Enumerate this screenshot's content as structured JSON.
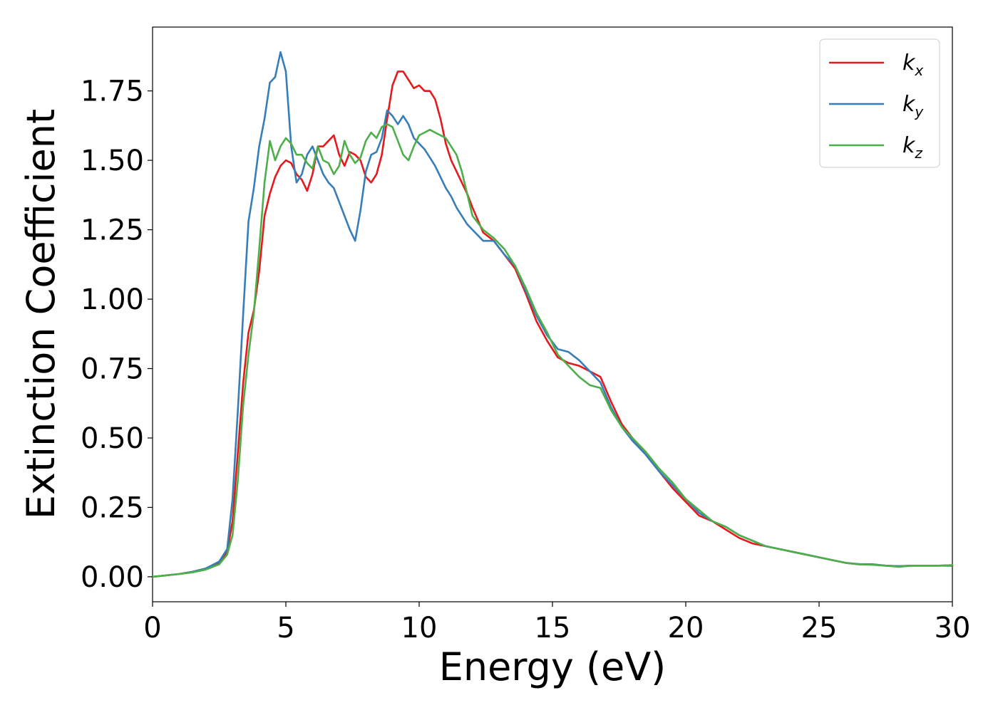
{
  "chart_data": {
    "type": "line",
    "title": "",
    "xlabel": "Energy (eV)",
    "ylabel": "Extinction Coefficient",
    "xlim": [
      0,
      30
    ],
    "ylim": [
      -0.09,
      1.98
    ],
    "xticks": [
      0,
      5,
      10,
      15,
      20,
      25,
      30
    ],
    "xtick_labels": [
      "0",
      "5",
      "10",
      "15",
      "20",
      "25",
      "30"
    ],
    "yticks": [
      0,
      0.25,
      0.5,
      0.75,
      1.0,
      1.25,
      1.5,
      1.75
    ],
    "ytick_labels": [
      "0.00",
      "0.25",
      "0.50",
      "0.75",
      "1.00",
      "1.25",
      "1.50",
      "1.75"
    ],
    "grid": false,
    "legend_position": "top-right",
    "series": [
      {
        "name": "k_x",
        "label_base": "k",
        "label_sub": "x",
        "color": "#e41a1c",
        "x": [
          0,
          0.5,
          1,
          1.5,
          2,
          2.5,
          2.8,
          3,
          3.2,
          3.4,
          3.6,
          3.8,
          4,
          4.2,
          4.4,
          4.6,
          4.8,
          5,
          5.2,
          5.4,
          5.6,
          5.8,
          6,
          6.2,
          6.4,
          6.6,
          6.8,
          7,
          7.2,
          7.4,
          7.6,
          7.8,
          8,
          8.2,
          8.4,
          8.6,
          8.8,
          9,
          9.2,
          9.4,
          9.6,
          9.8,
          10,
          10.2,
          10.4,
          10.6,
          10.8,
          11,
          11.2,
          11.4,
          11.6,
          11.8,
          12,
          12.4,
          12.8,
          13.2,
          13.6,
          14,
          14.4,
          14.8,
          15.2,
          15.6,
          16,
          16.4,
          16.8,
          17.2,
          17.6,
          18,
          18.5,
          19,
          19.5,
          20,
          20.5,
          21,
          21.5,
          22,
          22.5,
          23,
          23.5,
          24,
          24.5,
          25,
          25.5,
          26,
          26.5,
          27,
          27.5,
          28,
          28.5,
          29,
          29.5,
          30
        ],
        "y": [
          0,
          0.005,
          0.01,
          0.018,
          0.03,
          0.05,
          0.09,
          0.2,
          0.45,
          0.7,
          0.88,
          0.96,
          1.1,
          1.3,
          1.38,
          1.44,
          1.48,
          1.5,
          1.49,
          1.45,
          1.43,
          1.39,
          1.45,
          1.55,
          1.55,
          1.57,
          1.59,
          1.52,
          1.48,
          1.53,
          1.52,
          1.5,
          1.44,
          1.42,
          1.45,
          1.52,
          1.65,
          1.77,
          1.82,
          1.82,
          1.79,
          1.76,
          1.77,
          1.75,
          1.75,
          1.72,
          1.65,
          1.56,
          1.5,
          1.46,
          1.42,
          1.38,
          1.33,
          1.24,
          1.21,
          1.16,
          1.11,
          1.02,
          0.92,
          0.85,
          0.79,
          0.77,
          0.76,
          0.74,
          0.72,
          0.63,
          0.55,
          0.5,
          0.44,
          0.38,
          0.32,
          0.27,
          0.22,
          0.2,
          0.17,
          0.14,
          0.12,
          0.11,
          0.1,
          0.09,
          0.08,
          0.07,
          0.06,
          0.05,
          0.045,
          0.045,
          0.04,
          0.038,
          0.04,
          0.04,
          0.04,
          0.04
        ]
      },
      {
        "name": "k_y",
        "label_base": "k",
        "label_sub": "y",
        "color": "#377eb8",
        "x": [
          0,
          0.5,
          1,
          1.5,
          2,
          2.5,
          2.8,
          3,
          3.2,
          3.4,
          3.6,
          3.8,
          4,
          4.2,
          4.4,
          4.6,
          4.8,
          5,
          5.2,
          5.4,
          5.6,
          5.8,
          6,
          6.2,
          6.4,
          6.6,
          6.8,
          7,
          7.2,
          7.4,
          7.6,
          7.8,
          8,
          8.2,
          8.4,
          8.6,
          8.8,
          9,
          9.2,
          9.4,
          9.6,
          9.8,
          10,
          10.2,
          10.4,
          10.6,
          10.8,
          11,
          11.2,
          11.4,
          11.6,
          11.8,
          12,
          12.4,
          12.8,
          13.2,
          13.6,
          14,
          14.4,
          14.8,
          15.2,
          15.6,
          16,
          16.4,
          16.8,
          17.2,
          17.6,
          18,
          18.5,
          19,
          19.5,
          20,
          20.5,
          21,
          21.5,
          22,
          22.5,
          23,
          23.5,
          24,
          24.5,
          25,
          25.5,
          26,
          26.5,
          27,
          27.5,
          28,
          28.5,
          29,
          29.5,
          30
        ],
        "y": [
          0,
          0.005,
          0.01,
          0.018,
          0.03,
          0.055,
          0.1,
          0.28,
          0.6,
          0.95,
          1.28,
          1.4,
          1.55,
          1.65,
          1.78,
          1.8,
          1.89,
          1.82,
          1.55,
          1.42,
          1.45,
          1.52,
          1.55,
          1.5,
          1.45,
          1.42,
          1.4,
          1.35,
          1.3,
          1.25,
          1.21,
          1.32,
          1.46,
          1.52,
          1.53,
          1.58,
          1.68,
          1.66,
          1.63,
          1.66,
          1.63,
          1.58,
          1.56,
          1.54,
          1.51,
          1.48,
          1.44,
          1.4,
          1.37,
          1.33,
          1.3,
          1.27,
          1.25,
          1.21,
          1.21,
          1.16,
          1.12,
          1.03,
          0.94,
          0.87,
          0.82,
          0.81,
          0.78,
          0.74,
          0.7,
          0.61,
          0.54,
          0.49,
          0.44,
          0.38,
          0.33,
          0.28,
          0.23,
          0.2,
          0.18,
          0.15,
          0.13,
          0.11,
          0.1,
          0.09,
          0.08,
          0.07,
          0.06,
          0.05,
          0.046,
          0.045,
          0.04,
          0.038,
          0.04,
          0.04,
          0.04,
          0.042
        ]
      },
      {
        "name": "k_z",
        "label_base": "k",
        "label_sub": "z",
        "color": "#4daf4a",
        "x": [
          0,
          0.5,
          1,
          1.5,
          2,
          2.5,
          2.8,
          3,
          3.2,
          3.4,
          3.6,
          3.8,
          4,
          4.2,
          4.4,
          4.6,
          4.8,
          5,
          5.2,
          5.4,
          5.6,
          5.8,
          6,
          6.2,
          6.4,
          6.6,
          6.8,
          7,
          7.2,
          7.4,
          7.6,
          7.8,
          8,
          8.2,
          8.4,
          8.6,
          8.8,
          9,
          9.2,
          9.4,
          9.6,
          9.8,
          10,
          10.2,
          10.4,
          10.6,
          10.8,
          11,
          11.2,
          11.4,
          11.6,
          11.8,
          12,
          12.4,
          12.8,
          13.2,
          13.6,
          14,
          14.4,
          14.8,
          15.2,
          15.6,
          16,
          16.4,
          16.8,
          17.2,
          17.6,
          18,
          18.5,
          19,
          19.5,
          20,
          20.5,
          21,
          21.5,
          22,
          22.5,
          23,
          23.5,
          24,
          24.5,
          25,
          25.5,
          26,
          26.5,
          27,
          27.5,
          28,
          28.5,
          29,
          29.5,
          30
        ],
        "y": [
          0,
          0.005,
          0.01,
          0.016,
          0.026,
          0.045,
          0.08,
          0.15,
          0.35,
          0.62,
          0.8,
          0.95,
          1.18,
          1.42,
          1.57,
          1.5,
          1.55,
          1.58,
          1.56,
          1.52,
          1.52,
          1.49,
          1.47,
          1.55,
          1.5,
          1.49,
          1.45,
          1.48,
          1.57,
          1.52,
          1.49,
          1.51,
          1.57,
          1.6,
          1.58,
          1.62,
          1.63,
          1.62,
          1.57,
          1.52,
          1.5,
          1.55,
          1.59,
          1.6,
          1.61,
          1.6,
          1.59,
          1.58,
          1.55,
          1.52,
          1.46,
          1.38,
          1.3,
          1.25,
          1.22,
          1.18,
          1.12,
          1.04,
          0.95,
          0.88,
          0.8,
          0.76,
          0.72,
          0.69,
          0.68,
          0.6,
          0.54,
          0.5,
          0.45,
          0.39,
          0.34,
          0.28,
          0.24,
          0.2,
          0.18,
          0.15,
          0.13,
          0.11,
          0.1,
          0.09,
          0.08,
          0.07,
          0.06,
          0.05,
          0.045,
          0.043,
          0.04,
          0.036,
          0.04,
          0.04,
          0.04,
          0.042
        ]
      }
    ]
  }
}
